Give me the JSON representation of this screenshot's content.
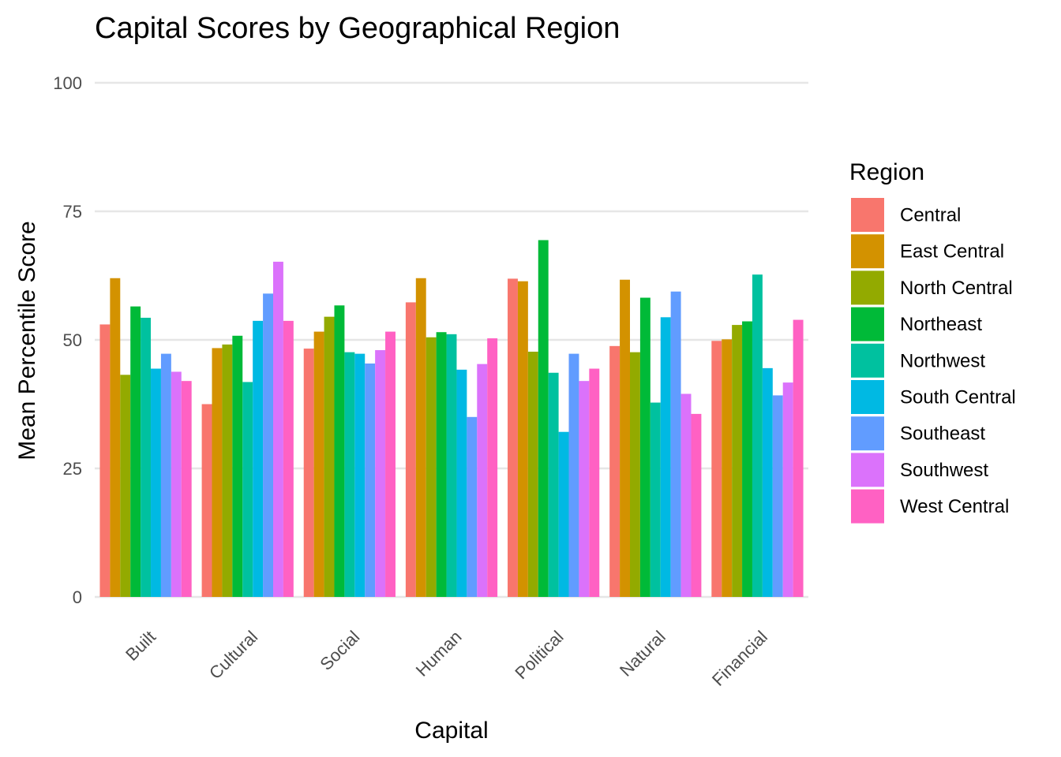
{
  "chart_data": {
    "type": "bar",
    "title": "Capital Scores by Geographical Region",
    "xlabel": "Capital",
    "ylabel": "Mean Percentile Score",
    "ylim": [
      0,
      100
    ],
    "yticks": [
      0,
      25,
      50,
      75,
      100
    ],
    "grid": true,
    "legend": {
      "title": "Region",
      "placement": "right"
    },
    "categories": [
      "Built",
      "Cultural",
      "Social",
      "Human",
      "Political",
      "Natural",
      "Financial"
    ],
    "series": [
      {
        "name": "Central",
        "color": "#F8766D",
        "values": [
          53.0,
          37.5,
          48.3,
          57.3,
          61.9,
          48.8,
          49.8
        ]
      },
      {
        "name": "East Central",
        "color": "#D39200",
        "values": [
          62.0,
          48.4,
          51.6,
          62.0,
          61.4,
          61.7,
          50.1
        ]
      },
      {
        "name": "North Central",
        "color": "#93AA00",
        "values": [
          43.2,
          49.1,
          54.5,
          50.5,
          47.7,
          47.6,
          52.9
        ]
      },
      {
        "name": "Northeast",
        "color": "#00BA38",
        "values": [
          56.5,
          50.8,
          56.7,
          51.5,
          69.4,
          58.2,
          53.6
        ]
      },
      {
        "name": "Northwest",
        "color": "#00C19F",
        "values": [
          54.3,
          41.8,
          47.6,
          51.1,
          43.6,
          37.8,
          62.7
        ]
      },
      {
        "name": "South Central",
        "color": "#00B9E3",
        "values": [
          44.4,
          53.7,
          47.3,
          44.2,
          32.1,
          54.4,
          44.5
        ]
      },
      {
        "name": "Southeast",
        "color": "#619CFF",
        "values": [
          47.3,
          59.0,
          45.4,
          35.0,
          47.3,
          59.4,
          39.2
        ]
      },
      {
        "name": "Southwest",
        "color": "#DB72FB",
        "values": [
          43.8,
          65.2,
          48.0,
          45.3,
          42.0,
          39.5,
          41.7
        ]
      },
      {
        "name": "West Central",
        "color": "#FF61C3",
        "values": [
          42.0,
          53.7,
          51.6,
          50.3,
          44.4,
          35.6,
          53.9
        ]
      }
    ]
  }
}
